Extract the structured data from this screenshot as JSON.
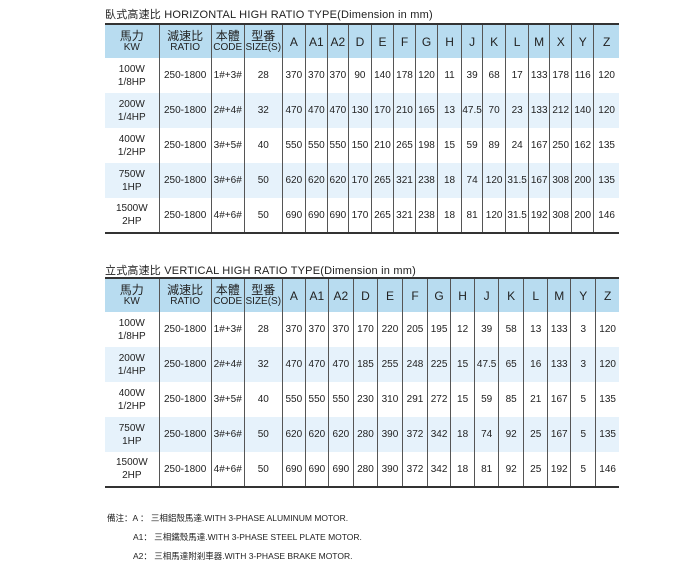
{
  "horizontal": {
    "title": "臥式高速比  HORIZONTAL  HIGH  RATIO  TYPE(Dimension in mm)",
    "headers": [
      [
        "馬力",
        "KW"
      ],
      [
        "減速比",
        "RATIO"
      ],
      [
        "本體",
        "CODE"
      ],
      [
        "型番",
        "SIZE(S)"
      ],
      [
        "A"
      ],
      [
        "A1"
      ],
      [
        "A2"
      ],
      [
        "D"
      ],
      [
        "E"
      ],
      [
        "F"
      ],
      [
        "G"
      ],
      [
        "H"
      ],
      [
        "J"
      ],
      [
        "K"
      ],
      [
        "L"
      ],
      [
        "M"
      ],
      [
        "X"
      ],
      [
        "Y"
      ],
      [
        "Z"
      ]
    ],
    "rows": [
      [
        [
          "100W",
          "1/8HP"
        ],
        "250-1800",
        "1#+3#",
        "28",
        "370",
        "370",
        "370",
        "90",
        "140",
        "178",
        "120",
        "11",
        "39",
        "68",
        "17",
        "133",
        "178",
        "116",
        "120"
      ],
      [
        [
          "200W",
          "1/4HP"
        ],
        "250-1800",
        "2#+4#",
        "32",
        "470",
        "470",
        "470",
        "130",
        "170",
        "210",
        "165",
        "13",
        "47.5",
        "70",
        "23",
        "133",
        "212",
        "140",
        "120"
      ],
      [
        [
          "400W",
          "1/2HP"
        ],
        "250-1800",
        "3#+5#",
        "40",
        "550",
        "550",
        "550",
        "150",
        "210",
        "265",
        "198",
        "15",
        "59",
        "89",
        "24",
        "167",
        "250",
        "162",
        "135"
      ],
      [
        [
          "750W",
          "1HP"
        ],
        "250-1800",
        "3#+6#",
        "50",
        "620",
        "620",
        "620",
        "170",
        "265",
        "321",
        "238",
        "18",
        "74",
        "120",
        "31.5",
        "167",
        "308",
        "200",
        "135"
      ],
      [
        [
          "1500W",
          "2HP"
        ],
        "250-1800",
        "4#+6#",
        "50",
        "690",
        "690",
        "690",
        "170",
        "265",
        "321",
        "238",
        "18",
        "81",
        "120",
        "31.5",
        "192",
        "308",
        "200",
        "146"
      ]
    ]
  },
  "vertical": {
    "title": "立式高速比  VERTICAL HIGH  RATIO  TYPE(Dimension in mm)",
    "headers": [
      [
        "馬力",
        "KW"
      ],
      [
        "減速比",
        "RATIO"
      ],
      [
        "本體",
        "CODE"
      ],
      [
        "型番",
        "SIZE(S)"
      ],
      [
        "A"
      ],
      [
        "A1"
      ],
      [
        "A2"
      ],
      [
        "D"
      ],
      [
        "E"
      ],
      [
        "F"
      ],
      [
        "G"
      ],
      [
        "H"
      ],
      [
        "J"
      ],
      [
        "K"
      ],
      [
        "L"
      ],
      [
        "M"
      ],
      [
        "Y"
      ],
      [
        "Z"
      ]
    ],
    "rows": [
      [
        [
          "100W",
          "1/8HP"
        ],
        "250-1800",
        "1#+3#",
        "28",
        "370",
        "370",
        "370",
        "170",
        "220",
        "205",
        "195",
        "12",
        "39",
        "58",
        "13",
        "133",
        "3",
        "120"
      ],
      [
        [
          "200W",
          "1/4HP"
        ],
        "250-1800",
        "2#+4#",
        "32",
        "470",
        "470",
        "470",
        "185",
        "255",
        "248",
        "225",
        "15",
        "47.5",
        "65",
        "16",
        "133",
        "3",
        "120"
      ],
      [
        [
          "400W",
          "1/2HP"
        ],
        "250-1800",
        "3#+5#",
        "40",
        "550",
        "550",
        "550",
        "230",
        "310",
        "291",
        "272",
        "15",
        "59",
        "85",
        "21",
        "167",
        "5",
        "135"
      ],
      [
        [
          "750W",
          "1HP"
        ],
        "250-1800",
        "3#+6#",
        "50",
        "620",
        "620",
        "620",
        "280",
        "390",
        "372",
        "342",
        "18",
        "74",
        "92",
        "25",
        "167",
        "5",
        "135"
      ],
      [
        [
          "1500W",
          "2HP"
        ],
        "250-1800",
        "4#+6#",
        "50",
        "690",
        "690",
        "690",
        "280",
        "390",
        "372",
        "342",
        "18",
        "81",
        "92",
        "25",
        "192",
        "5",
        "146"
      ]
    ]
  },
  "notes": [
    "備注：A ： 三相鋁殼馬達.WITH 3-PHASE  ALUMINUM  MOTOR.",
    "A1： 三相鐵殼馬達.WITH 3-PHASE  STEEL PLATE  MOTOR.",
    "A2： 三相馬達附剎車器.WITH 3-PHASE  BRAKE   MOTOR."
  ],
  "colors": {
    "header_bg": "#b8dcf0",
    "band_bg": "#e6f2fb"
  }
}
